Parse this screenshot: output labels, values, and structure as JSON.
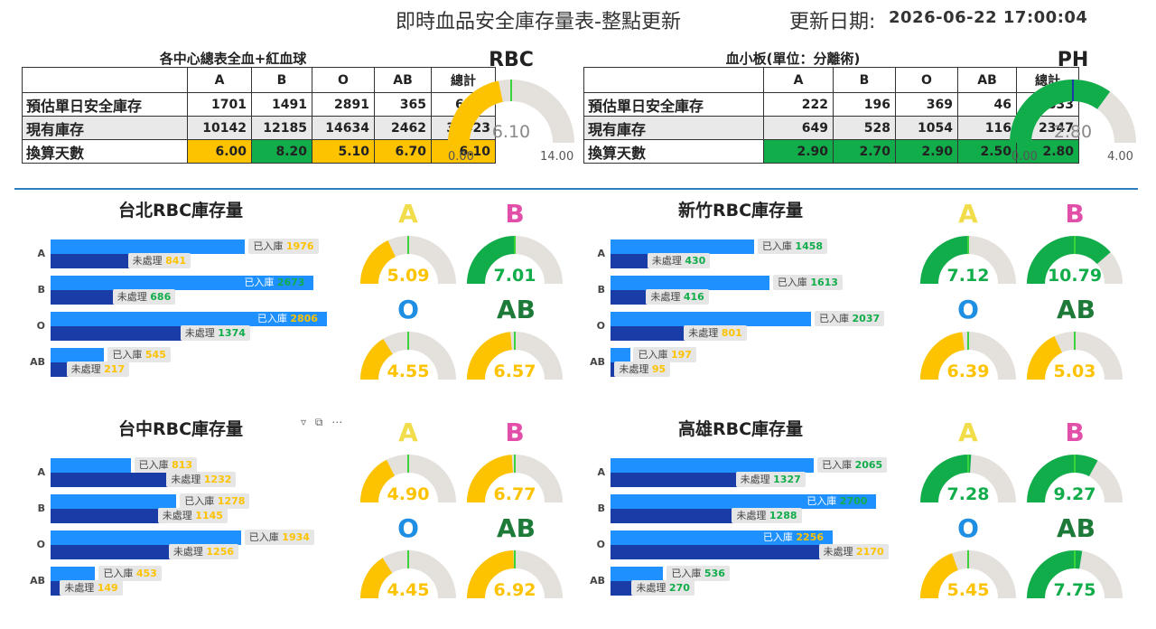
{
  "header": {
    "title": "即時血品安全庫存量表-整點更新",
    "updated_label": "更新日期:",
    "updated_value": "2026-06-22 17:00:04"
  },
  "colors": {
    "yellow": "#fdc300",
    "green": "#12ad4b",
    "grey": "#e4e1dc",
    "needle": "#3ad33a",
    "label_A": "#f1dc49",
    "label_B": "#e24fa8",
    "label_O": "#1f8fe4",
    "label_AB": "#1d7a38"
  },
  "rbc_table": {
    "caption": "各中心總表全血+紅血球",
    "columns": [
      "",
      "A",
      "B",
      "O",
      "AB",
      "總計"
    ],
    "rows": [
      {
        "label": "預估單日安全庫存",
        "values": [
          "1701",
          "1491",
          "2891",
          "365",
          "6448"
        ]
      },
      {
        "label": "現有庫存",
        "values": [
          "10142",
          "12185",
          "14634",
          "2462",
          "39423"
        ]
      },
      {
        "label": "換算天數",
        "values": [
          "6.00",
          "8.20",
          "5.10",
          "6.70",
          "6.10"
        ],
        "colors": [
          "yellow",
          "green",
          "yellow",
          "yellow",
          "yellow"
        ]
      }
    ]
  },
  "plt_table": {
    "caption": "血小板(單位：分離術)",
    "columns": [
      "",
      "A",
      "B",
      "O",
      "AB",
      "總計"
    ],
    "rows": [
      {
        "label": "預估單日安全庫存",
        "values": [
          "222",
          "196",
          "369",
          "46",
          "833"
        ]
      },
      {
        "label": "現有庫存",
        "values": [
          "649",
          "528",
          "1054",
          "116",
          "2347"
        ]
      },
      {
        "label": "換算天數",
        "values": [
          "2.90",
          "2.70",
          "2.90",
          "2.50",
          "2.80"
        ],
        "colors": [
          "green",
          "green",
          "green",
          "green",
          "green"
        ]
      }
    ]
  },
  "chart_data": [
    {
      "type": "gauge",
      "title": "RBC",
      "value": "6.10",
      "min": "0.00",
      "max": "14.00",
      "target": 7,
      "color": "yellow"
    },
    {
      "type": "gauge",
      "title": "PH",
      "value": "2.80",
      "min": "0.00",
      "max": "4.00",
      "target": 2.0,
      "color": "green"
    },
    {
      "type": "bar",
      "title": "台北RBC庫存量",
      "categories": [
        "A",
        "B",
        "O",
        "AB"
      ],
      "series": [
        {
          "name": "已入庫",
          "values": [
            1976,
            2673,
            2806,
            545
          ]
        },
        {
          "name": "未處理",
          "values": [
            841,
            686,
            1374,
            217
          ]
        }
      ],
      "label_colors": [
        [
          "yellow",
          "yellow"
        ],
        [
          "green",
          "green"
        ],
        [
          "yellow",
          "green"
        ],
        [
          "yellow",
          "yellow"
        ]
      ],
      "gauges": [
        {
          "label": "A",
          "value": "5.09",
          "color": "yellow",
          "fraction": 0.36
        },
        {
          "label": "B",
          "value": "7.01",
          "color": "green",
          "fraction": 0.5
        },
        {
          "label": "O",
          "value": "4.55",
          "color": "yellow",
          "fraction": 0.325
        },
        {
          "label": "AB",
          "value": "6.57",
          "color": "yellow",
          "fraction": 0.47
        }
      ]
    },
    {
      "type": "bar",
      "title": "新竹RBC庫存量",
      "categories": [
        "A",
        "B",
        "O",
        "AB"
      ],
      "series": [
        {
          "name": "已入庫",
          "values": [
            1458,
            1613,
            2037,
            197
          ]
        },
        {
          "name": "未處理",
          "values": [
            430,
            416,
            801,
            95
          ]
        }
      ],
      "label_colors": [
        [
          "green",
          "green"
        ],
        [
          "green",
          "green"
        ],
        [
          "green",
          "yellow"
        ],
        [
          "yellow",
          "yellow"
        ]
      ],
      "gauges": [
        {
          "label": "A",
          "value": "7.12",
          "color": "green",
          "fraction": 0.5
        },
        {
          "label": "B",
          "value": "10.79",
          "color": "green",
          "fraction": 0.77
        },
        {
          "label": "O",
          "value": "6.39",
          "color": "yellow",
          "fraction": 0.46
        },
        {
          "label": "AB",
          "value": "5.03",
          "color": "yellow",
          "fraction": 0.36
        }
      ]
    },
    {
      "type": "bar",
      "title": "台中RBC庫存量",
      "categories": [
        "A",
        "B",
        "O",
        "AB"
      ],
      "series": [
        {
          "name": "已入庫",
          "values": [
            813,
            1278,
            1934,
            453
          ]
        },
        {
          "name": "未處理",
          "values": [
            1232,
            1145,
            1256,
            149
          ]
        }
      ],
      "label_colors": [
        [
          "yellow",
          "yellow"
        ],
        [
          "yellow",
          "yellow"
        ],
        [
          "yellow",
          "yellow"
        ],
        [
          "yellow",
          "yellow"
        ]
      ],
      "gauges": [
        {
          "label": "A",
          "value": "4.90",
          "color": "yellow",
          "fraction": 0.35
        },
        {
          "label": "B",
          "value": "6.77",
          "color": "yellow",
          "fraction": 0.48
        },
        {
          "label": "O",
          "value": "4.45",
          "color": "yellow",
          "fraction": 0.32
        },
        {
          "label": "AB",
          "value": "6.92",
          "color": "yellow",
          "fraction": 0.49
        }
      ]
    },
    {
      "type": "bar",
      "title": "高雄RBC庫存量",
      "categories": [
        "A",
        "B",
        "O",
        "AB"
      ],
      "series": [
        {
          "name": "已入庫",
          "values": [
            2065,
            2700,
            2256,
            536
          ]
        },
        {
          "name": "未處理",
          "values": [
            1327,
            1288,
            2170,
            270
          ]
        }
      ],
      "label_colors": [
        [
          "green",
          "green"
        ],
        [
          "green",
          "green"
        ],
        [
          "yellow",
          "yellow"
        ],
        [
          "green",
          "green"
        ]
      ],
      "gauges": [
        {
          "label": "A",
          "value": "7.28",
          "color": "green",
          "fraction": 0.52
        },
        {
          "label": "B",
          "value": "9.27",
          "color": "green",
          "fraction": 0.66
        },
        {
          "label": "O",
          "value": "5.45",
          "color": "yellow",
          "fraction": 0.39
        },
        {
          "label": "AB",
          "value": "7.75",
          "color": "green",
          "fraction": 0.55
        }
      ]
    }
  ]
}
